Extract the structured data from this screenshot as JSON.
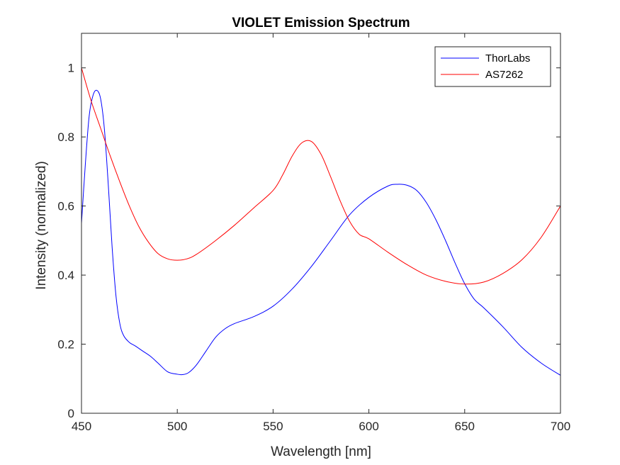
{
  "chart_data": {
    "type": "line",
    "title": "VIOLET Emission Spectrum",
    "xlabel": "Wavelength [nm]",
    "ylabel": "Intensity (normalized)",
    "xlim": [
      450,
      700
    ],
    "ylim": [
      0,
      1.1
    ],
    "x_ticks": [
      450,
      500,
      550,
      600,
      650,
      700
    ],
    "y_ticks": [
      0,
      0.2,
      0.4,
      0.6,
      0.8,
      1
    ],
    "x_tick_labels": [
      "450",
      "500",
      "550",
      "600",
      "650",
      "700"
    ],
    "y_tick_labels": [
      "0",
      "0.2",
      "0.4",
      "0.6",
      "0.8",
      "1"
    ],
    "grid": false,
    "legend_position": "top-right",
    "series": [
      {
        "name": "ThorLabs",
        "color": "#0000ff",
        "x": [
          450,
          452,
          454,
          456,
          458,
          460,
          462,
          464,
          466,
          468,
          470,
          472,
          475,
          478,
          482,
          486,
          490,
          495,
          500,
          503,
          506,
          510,
          515,
          520,
          525,
          530,
          540,
          550,
          560,
          570,
          580,
          590,
          600,
          610,
          615,
          620,
          625,
          630,
          635,
          640,
          645,
          650,
          655,
          660,
          670,
          680,
          690,
          700
        ],
        "y": [
          0.55,
          0.72,
          0.86,
          0.92,
          0.935,
          0.91,
          0.82,
          0.66,
          0.48,
          0.34,
          0.26,
          0.225,
          0.205,
          0.195,
          0.18,
          0.165,
          0.145,
          0.12,
          0.113,
          0.112,
          0.118,
          0.14,
          0.18,
          0.22,
          0.245,
          0.26,
          0.28,
          0.31,
          0.36,
          0.425,
          0.5,
          0.575,
          0.625,
          0.658,
          0.663,
          0.66,
          0.645,
          0.61,
          0.56,
          0.5,
          0.435,
          0.375,
          0.33,
          0.305,
          0.25,
          0.19,
          0.145,
          0.11
        ]
      },
      {
        "name": "AS7262",
        "color": "#ff0000",
        "x": [
          450,
          455,
          460,
          465,
          470,
          475,
          480,
          485,
          490,
          495,
          500,
          505,
          510,
          520,
          530,
          540,
          550,
          555,
          560,
          565,
          570,
          575,
          580,
          585,
          590,
          595,
          600,
          610,
          620,
          630,
          640,
          650,
          660,
          670,
          680,
          690,
          700
        ],
        "y": [
          1.0,
          0.905,
          0.825,
          0.745,
          0.67,
          0.6,
          0.54,
          0.495,
          0.462,
          0.447,
          0.443,
          0.447,
          0.46,
          0.5,
          0.545,
          0.595,
          0.645,
          0.69,
          0.745,
          0.783,
          0.787,
          0.75,
          0.685,
          0.615,
          0.555,
          0.518,
          0.505,
          0.466,
          0.43,
          0.4,
          0.382,
          0.374,
          0.38,
          0.405,
          0.445,
          0.51,
          0.6
        ]
      }
    ]
  }
}
